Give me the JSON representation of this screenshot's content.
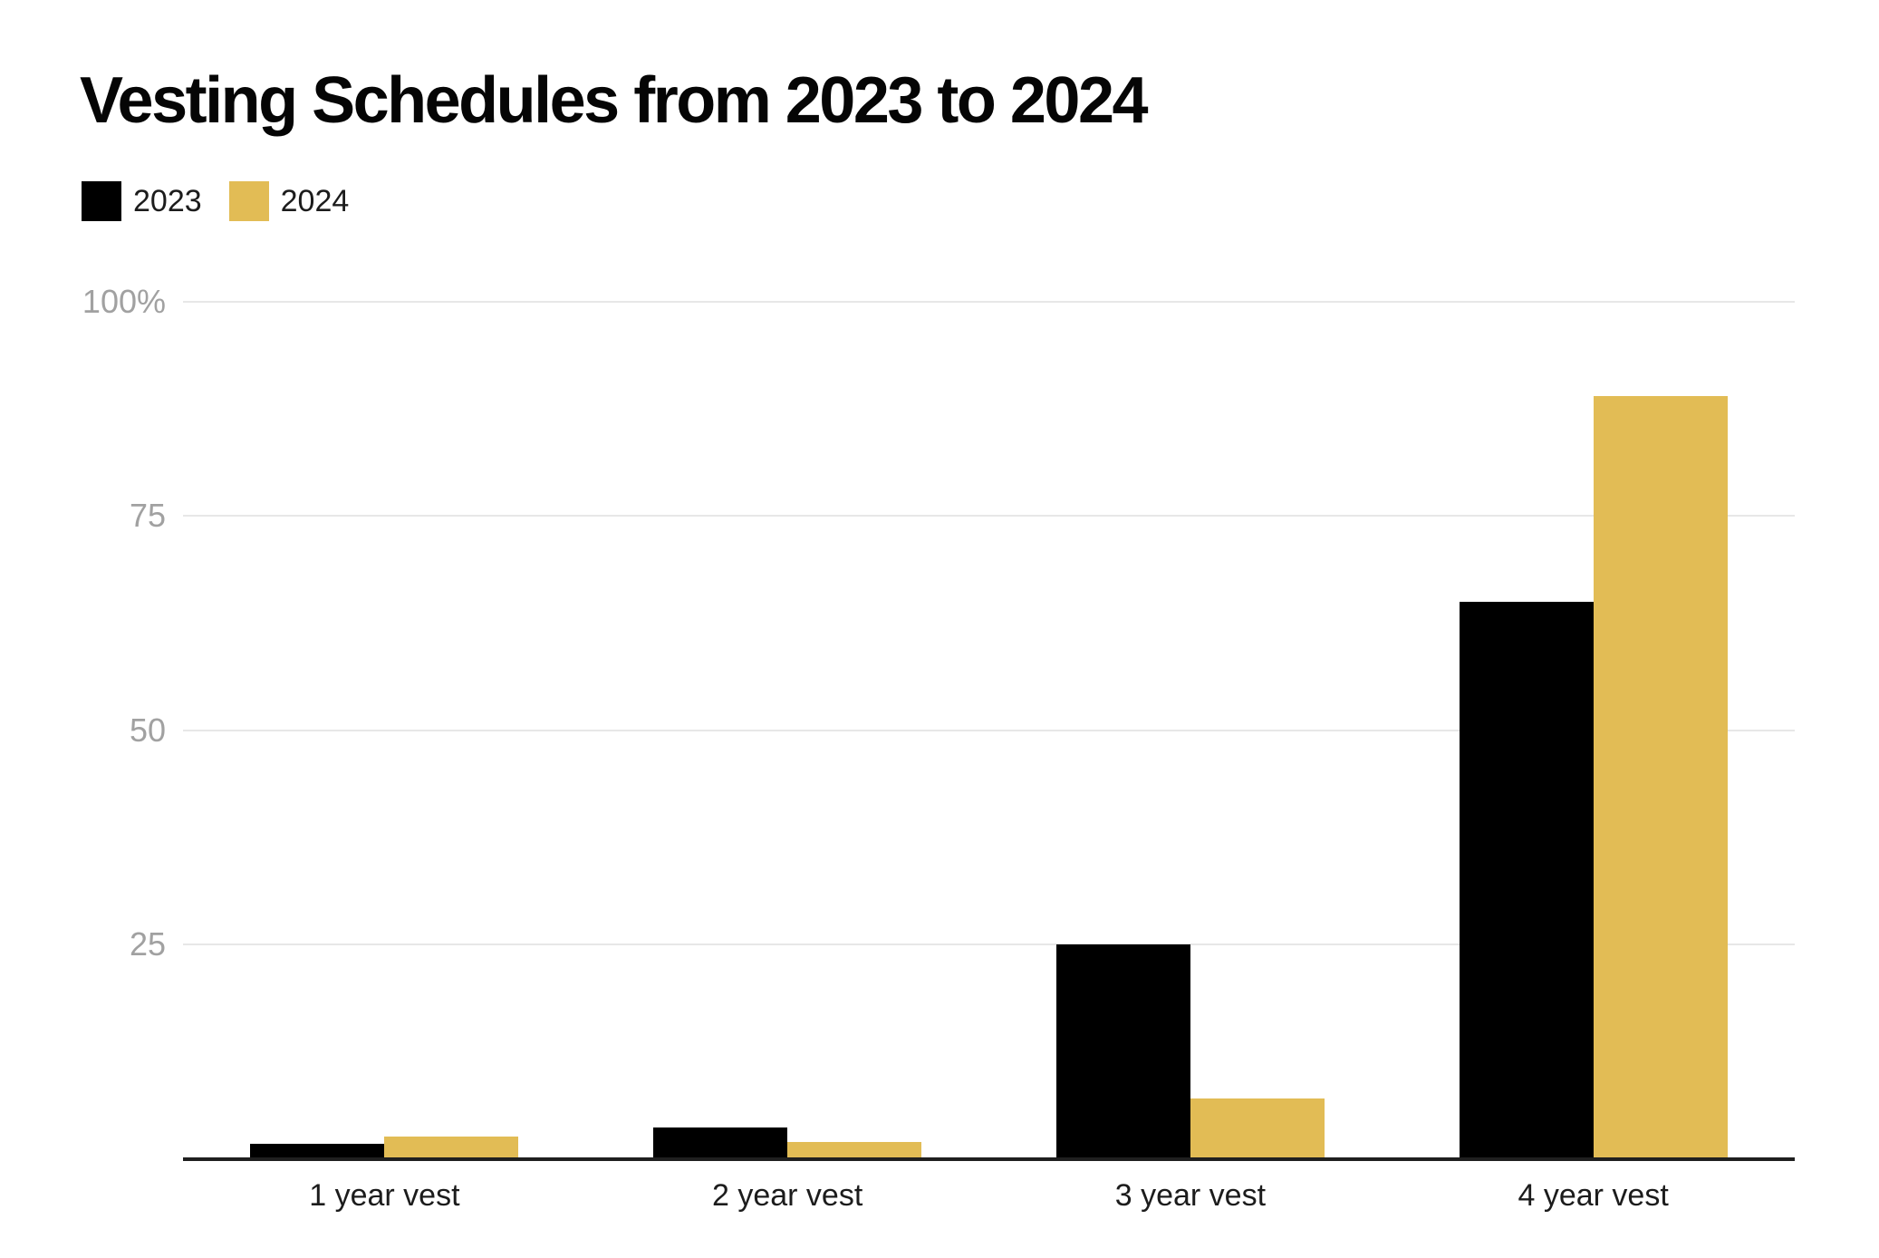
{
  "chart_data": {
    "type": "bar",
    "title": "Vesting Schedules from 2023 to 2024",
    "categories": [
      "1 year vest",
      "2 year vest",
      "3 year vest",
      "4 year vest"
    ],
    "series": [
      {
        "name": "2023",
        "color": "#000000",
        "values": [
          1.7,
          3.6,
          25,
          65
        ]
      },
      {
        "name": "2024",
        "color": "#e2bc55",
        "values": [
          2.5,
          1.9,
          7,
          89
        ]
      }
    ],
    "xlabel": "",
    "ylabel": "",
    "ylim": [
      0,
      100
    ],
    "yticks": [
      {
        "label": "100%",
        "value": 100
      },
      {
        "label": "75",
        "value": 75
      },
      {
        "label": "50",
        "value": 50
      },
      {
        "label": "25",
        "value": 25
      }
    ],
    "grid": true,
    "legend_position": "top-left",
    "theme": {
      "gridline_color": "#e7e7e7",
      "axis_line_color": "#1f1f1f",
      "ytick_color": "#a1a1a1",
      "xtick_color": "#1c1c1c",
      "title_color": "#050505"
    }
  }
}
